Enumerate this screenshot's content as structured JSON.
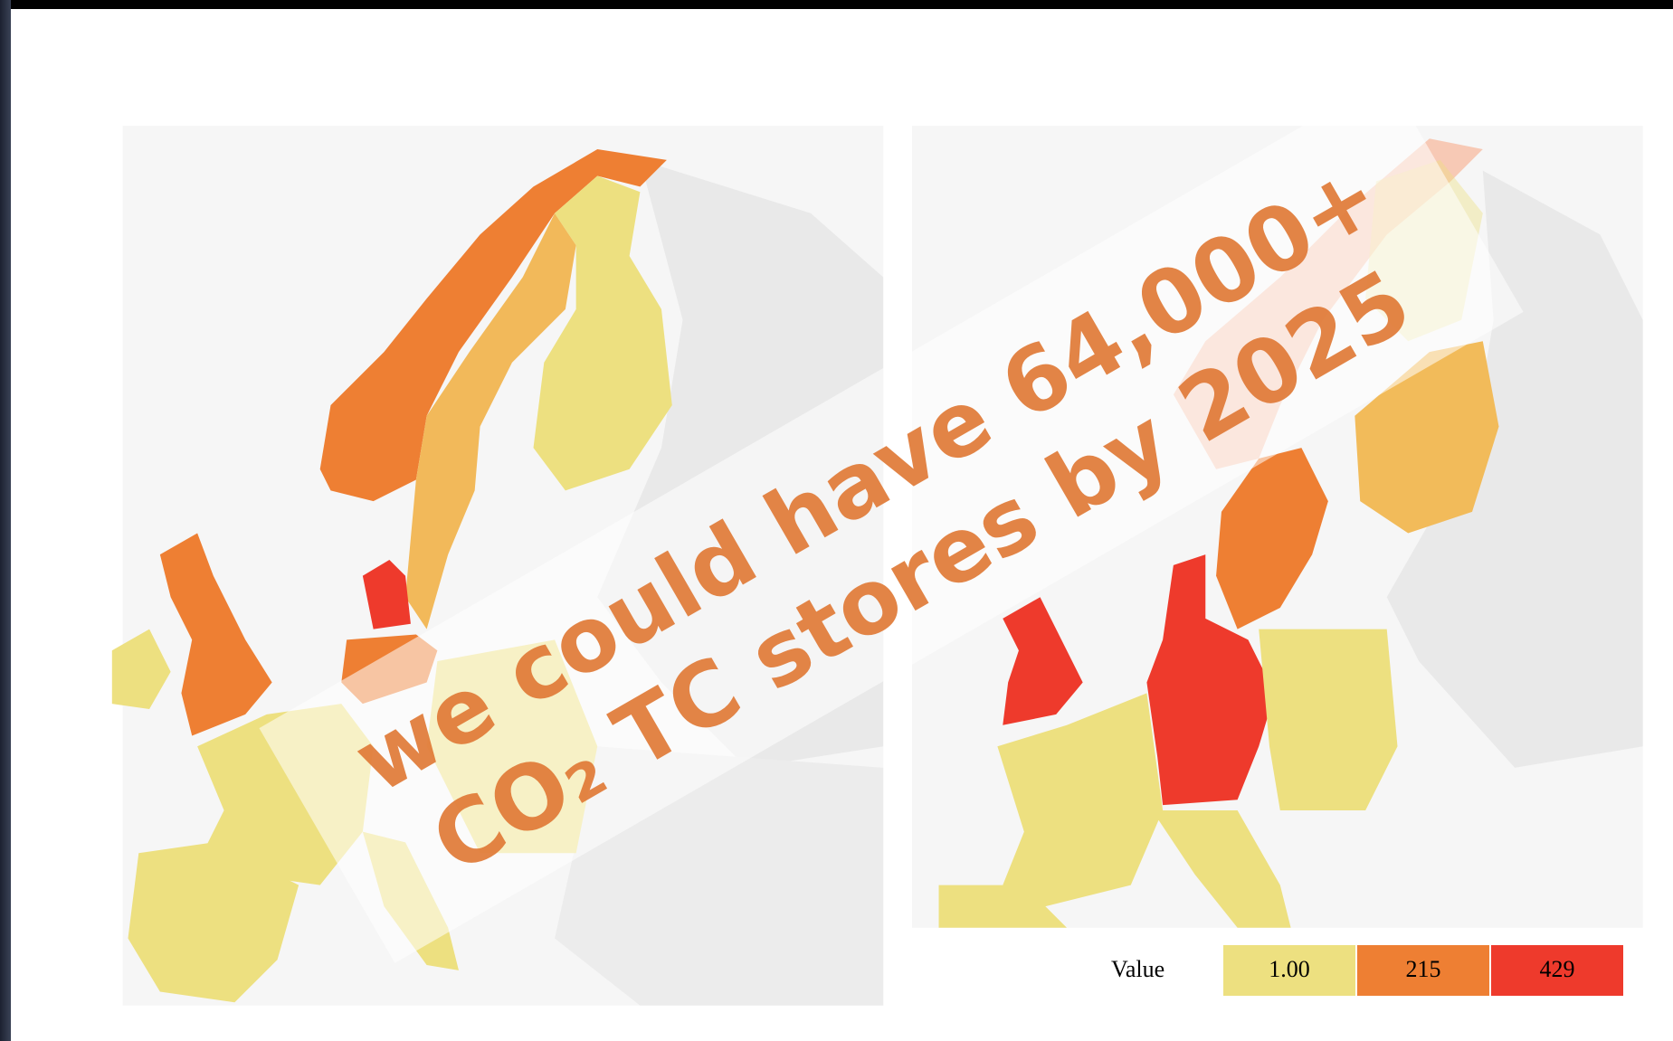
{
  "overlay": {
    "lines": [
      "we could have 64,000+",
      "CO₂ TC stores by 2025"
    ]
  },
  "legend": {
    "title": "Value",
    "items": [
      {
        "label": "1.00",
        "color": "#ede080"
      },
      {
        "label": "215",
        "color": "#ee7f33"
      },
      {
        "label": "429",
        "color": "#ee3a2c"
      }
    ]
  }
}
